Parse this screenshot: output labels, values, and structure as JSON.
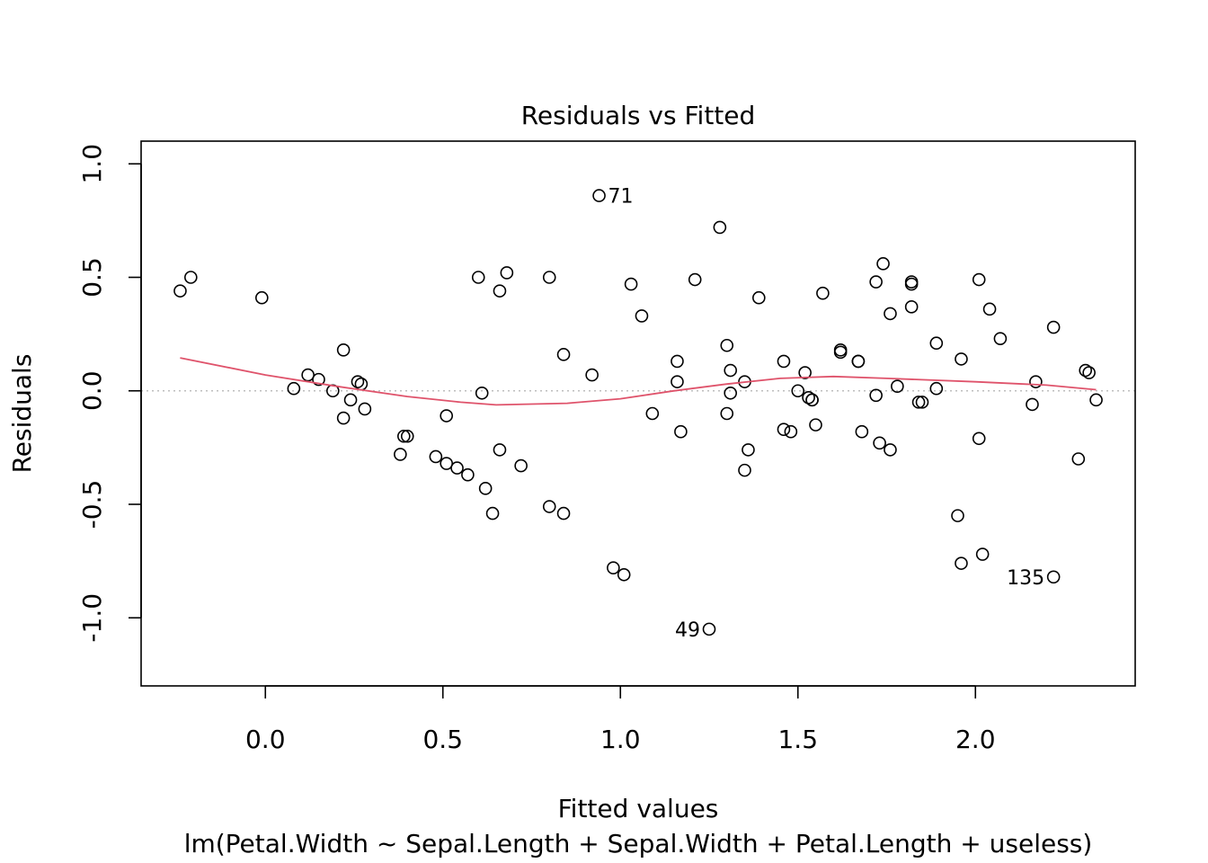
{
  "chart_data": {
    "type": "scatter",
    "title": "Residuals vs Fitted",
    "xlabel": "Fitted values",
    "subtitle": "lm(Petal.Width ~ Sepal.Length + Sepal.Width + Petal.Length + useless)",
    "ylabel": "Residuals",
    "xlim": [
      -0.35,
      2.45
    ],
    "ylim": [
      -1.3,
      1.1
    ],
    "x_ticks": [
      0.0,
      0.5,
      1.0,
      1.5,
      2.0
    ],
    "x_tick_labels": [
      "0.0",
      "0.5",
      "1.0",
      "1.5",
      "2.0"
    ],
    "y_ticks": [
      -1.0,
      -0.5,
      0.0,
      0.5,
      1.0
    ],
    "y_tick_labels": [
      "-1.0",
      "-0.5",
      "0.0",
      "0.5",
      "1.0"
    ],
    "reference_line": {
      "y": 0,
      "color": "#bebebe",
      "style": "dotted"
    },
    "smooth_color": "#df536b",
    "points": [
      [
        -0.24,
        0.44
      ],
      [
        -0.21,
        0.5
      ],
      [
        -0.01,
        0.41
      ],
      [
        0.08,
        0.01
      ],
      [
        0.12,
        0.07
      ],
      [
        0.15,
        0.05
      ],
      [
        0.19,
        0.0
      ],
      [
        0.22,
        0.18
      ],
      [
        0.22,
        -0.12
      ],
      [
        0.24,
        -0.04
      ],
      [
        0.26,
        0.04
      ],
      [
        0.27,
        0.03
      ],
      [
        0.28,
        -0.08
      ],
      [
        0.38,
        -0.28
      ],
      [
        0.39,
        -0.2
      ],
      [
        0.4,
        -0.2
      ],
      [
        0.48,
        -0.29
      ],
      [
        0.51,
        -0.32
      ],
      [
        0.51,
        -0.11
      ],
      [
        0.54,
        -0.34
      ],
      [
        0.57,
        -0.37
      ],
      [
        0.6,
        0.5
      ],
      [
        0.61,
        -0.01
      ],
      [
        0.62,
        -0.43
      ],
      [
        0.64,
        -0.54
      ],
      [
        0.66,
        -0.26
      ],
      [
        0.66,
        0.44
      ],
      [
        0.68,
        0.52
      ],
      [
        0.72,
        -0.33
      ],
      [
        0.8,
        0.5
      ],
      [
        0.8,
        -0.51
      ],
      [
        0.84,
        0.16
      ],
      [
        0.84,
        -0.54
      ],
      [
        0.92,
        0.07
      ],
      [
        0.94,
        0.86
      ],
      [
        0.98,
        -0.78
      ],
      [
        1.01,
        -0.81
      ],
      [
        1.03,
        0.47
      ],
      [
        1.06,
        0.33
      ],
      [
        1.09,
        -0.1
      ],
      [
        1.16,
        0.04
      ],
      [
        1.16,
        0.13
      ],
      [
        1.17,
        -0.18
      ],
      [
        1.21,
        0.49
      ],
      [
        1.25,
        -1.05
      ],
      [
        1.28,
        0.72
      ],
      [
        1.3,
        0.2
      ],
      [
        1.3,
        -0.1
      ],
      [
        1.31,
        0.09
      ],
      [
        1.31,
        -0.01
      ],
      [
        1.35,
        -0.35
      ],
      [
        1.35,
        0.04
      ],
      [
        1.36,
        -0.26
      ],
      [
        1.39,
        0.41
      ],
      [
        1.46,
        0.13
      ],
      [
        1.46,
        -0.17
      ],
      [
        1.48,
        -0.18
      ],
      [
        1.5,
        0.0
      ],
      [
        1.52,
        0.08
      ],
      [
        1.53,
        -0.03
      ],
      [
        1.54,
        -0.04
      ],
      [
        1.54,
        -0.04
      ],
      [
        1.55,
        -0.15
      ],
      [
        1.57,
        0.43
      ],
      [
        1.62,
        0.18
      ],
      [
        1.62,
        0.17
      ],
      [
        1.67,
        0.13
      ],
      [
        1.67,
        0.13
      ],
      [
        1.68,
        -0.18
      ],
      [
        1.72,
        0.48
      ],
      [
        1.72,
        -0.02
      ],
      [
        1.73,
        -0.23
      ],
      [
        1.74,
        0.56
      ],
      [
        1.76,
        -0.26
      ],
      [
        1.76,
        0.34
      ],
      [
        1.78,
        0.02
      ],
      [
        1.82,
        0.48
      ],
      [
        1.82,
        0.47
      ],
      [
        1.82,
        0.37
      ],
      [
        1.84,
        -0.05
      ],
      [
        1.85,
        -0.05
      ],
      [
        1.89,
        0.21
      ],
      [
        1.89,
        0.01
      ],
      [
        1.95,
        -0.55
      ],
      [
        1.96,
        -0.76
      ],
      [
        1.96,
        0.14
      ],
      [
        2.01,
        -0.21
      ],
      [
        2.01,
        0.49
      ],
      [
        2.02,
        -0.72
      ],
      [
        2.04,
        0.36
      ],
      [
        2.07,
        0.23
      ],
      [
        2.16,
        -0.06
      ],
      [
        2.17,
        0.04
      ],
      [
        2.22,
        -0.82
      ],
      [
        2.22,
        0.28
      ],
      [
        2.29,
        -0.3
      ],
      [
        2.31,
        0.09
      ],
      [
        2.32,
        0.08
      ],
      [
        2.34,
        -0.04
      ]
    ],
    "smooth": [
      [
        -0.24,
        0.145
      ],
      [
        0.0,
        0.07
      ],
      [
        0.2,
        0.02
      ],
      [
        0.4,
        -0.025
      ],
      [
        0.55,
        -0.05
      ],
      [
        0.65,
        -0.062
      ],
      [
        0.85,
        -0.055
      ],
      [
        1.0,
        -0.035
      ],
      [
        1.15,
        0.0
      ],
      [
        1.3,
        0.03
      ],
      [
        1.45,
        0.055
      ],
      [
        1.6,
        0.063
      ],
      [
        1.75,
        0.055
      ],
      [
        2.0,
        0.04
      ],
      [
        2.2,
        0.025
      ],
      [
        2.34,
        0.005
      ]
    ],
    "labeled_points": [
      {
        "label": "71",
        "x": 0.94,
        "y": 0.86,
        "side": "right"
      },
      {
        "label": "49",
        "x": 1.25,
        "y": -1.05,
        "side": "left"
      },
      {
        "label": "135",
        "x": 2.22,
        "y": -0.82,
        "side": "left"
      }
    ]
  }
}
